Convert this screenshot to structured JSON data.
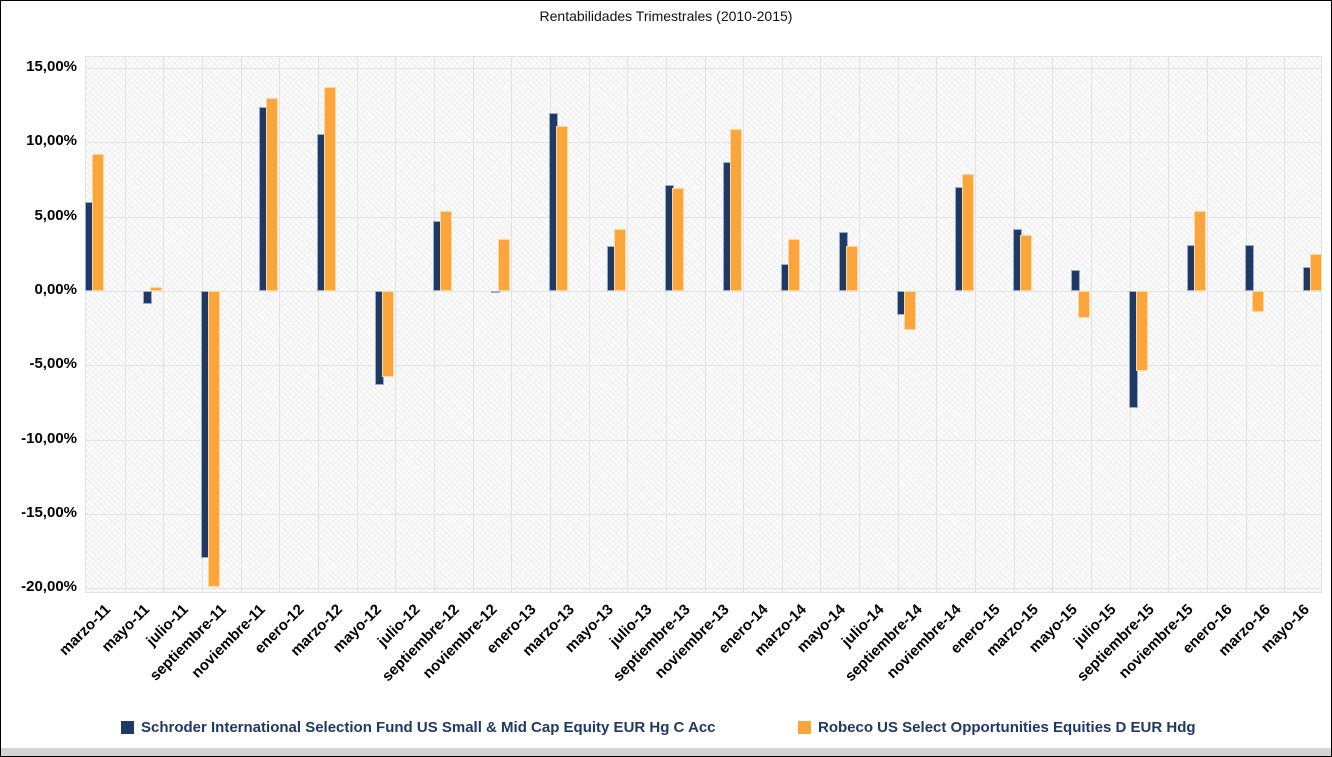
{
  "chart_data": {
    "type": "bar",
    "title": "Rentabilidades Trimestrales (2010-2015)",
    "x_tick_labels": [
      "marzo-11",
      "mayo-11",
      "julio-11",
      "septiembre-11",
      "noviembre-11",
      "enero-12",
      "marzo-12",
      "mayo-12",
      "julio-12",
      "septiembre-12",
      "noviembre-12",
      "enero-13",
      "marzo-13",
      "mayo-13",
      "julio-13",
      "septiembre-13",
      "noviembre-13",
      "enero-14",
      "marzo-14",
      "mayo-14",
      "julio-14",
      "septiembre-14",
      "noviembre-14",
      "enero-15",
      "marzo-15",
      "mayo-15",
      "julio-15",
      "septiembre-15",
      "noviembre-15",
      "enero-16",
      "marzo-16",
      "mayo-16"
    ],
    "series": [
      {
        "name": "Schroder International Selection Fund US Small & Mid Cap Equity EUR Hg C Acc",
        "color": "#1F3864",
        "values": [
          6.0,
          -0.9,
          -18.0,
          12.4,
          10.6,
          -6.3,
          4.7,
          -0.1,
          12.0,
          3.0,
          7.1,
          8.7,
          1.8,
          4.0,
          -1.6,
          7.0,
          4.2,
          1.4,
          -7.9,
          3.1,
          3.1,
          1.6
        ]
      },
      {
        "name": "Robeco US Select Opportunities Equities D EUR Hdg",
        "color": "#FAA63C",
        "values": [
          9.2,
          0.3,
          -19.9,
          13.0,
          13.7,
          -5.8,
          5.4,
          3.5,
          11.1,
          4.2,
          6.9,
          10.9,
          3.5,
          3.0,
          -2.6,
          7.9,
          3.8,
          -1.8,
          -5.4,
          5.4,
          -1.4,
          2.5
        ]
      }
    ],
    "bars_per_label_span": 1.5,
    "ytick_labels": [
      "15,00%",
      "10,00%",
      "5,00%",
      "0,00%",
      "-5,00%",
      "-10,00%",
      "-15,00%",
      "-20,00%"
    ],
    "ytick_values": [
      15,
      10,
      5,
      0,
      -5,
      -10,
      -15,
      -20
    ],
    "ylim": [
      -20.4,
      15.75
    ],
    "grid": true,
    "legend_position": "bottom",
    "colors": {
      "grid": "#E2E2E2",
      "axis_text": "#000000",
      "legend_text": "#1F3864"
    }
  }
}
